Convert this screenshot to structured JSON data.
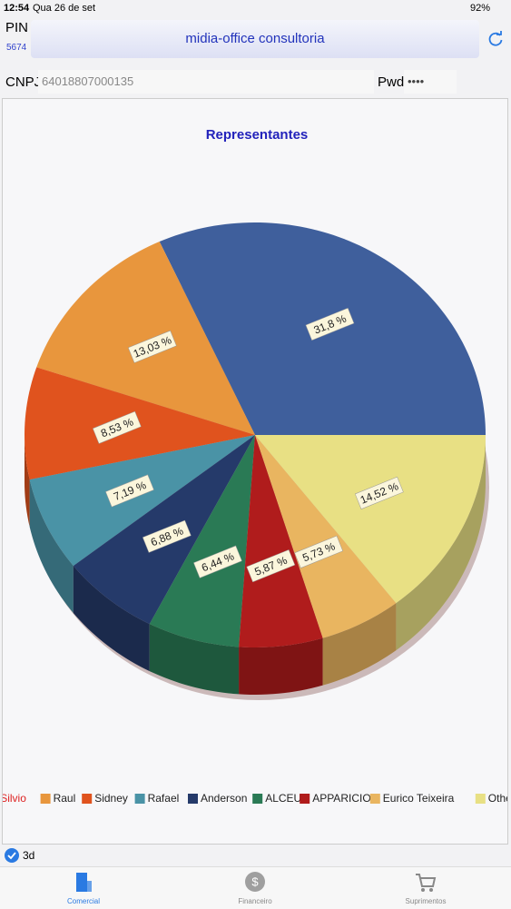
{
  "status_bar": {
    "time": "12:54",
    "date": "Qua 26 de set",
    "battery": "92%"
  },
  "header": {
    "pin_label": "PIN",
    "pin": "5674",
    "company": "midia-office consultoria",
    "cnpj_label": "CNPJ",
    "cnpj": "64018807000135",
    "pwd_label": "Pwd",
    "pwd": "••••"
  },
  "chart_data": {
    "type": "pie",
    "title": "Representantes",
    "three_d": true,
    "categories": [
      "Silvio",
      "Raul",
      "Sidney",
      "Rafael",
      "Anderson",
      "ALCEU",
      "APPARICIO",
      "Eurico Teixeira",
      "Other"
    ],
    "values": [
      31.8,
      13.03,
      8.53,
      7.19,
      6.88,
      6.44,
      5.87,
      5.73,
      14.52
    ],
    "value_labels": [
      "31,8 %",
      "13,03 %",
      "8,53 %",
      "7,19 %",
      "6,88 %",
      "6,44 %",
      "5,87 %",
      "5,73 %",
      "14,52 %"
    ],
    "colors": [
      "#3f5f9c",
      "#e8963d",
      "#e0531e",
      "#4a93a6",
      "#253a6a",
      "#2a7a55",
      "#b01c1c",
      "#e9b560",
      "#e8e084"
    ]
  },
  "controls": {
    "label": "3d",
    "checked": true
  },
  "tabs": [
    {
      "label": "Comercial",
      "active": true
    },
    {
      "label": "Financeiro",
      "active": false
    },
    {
      "label": "Suprimentos",
      "active": false
    }
  ]
}
